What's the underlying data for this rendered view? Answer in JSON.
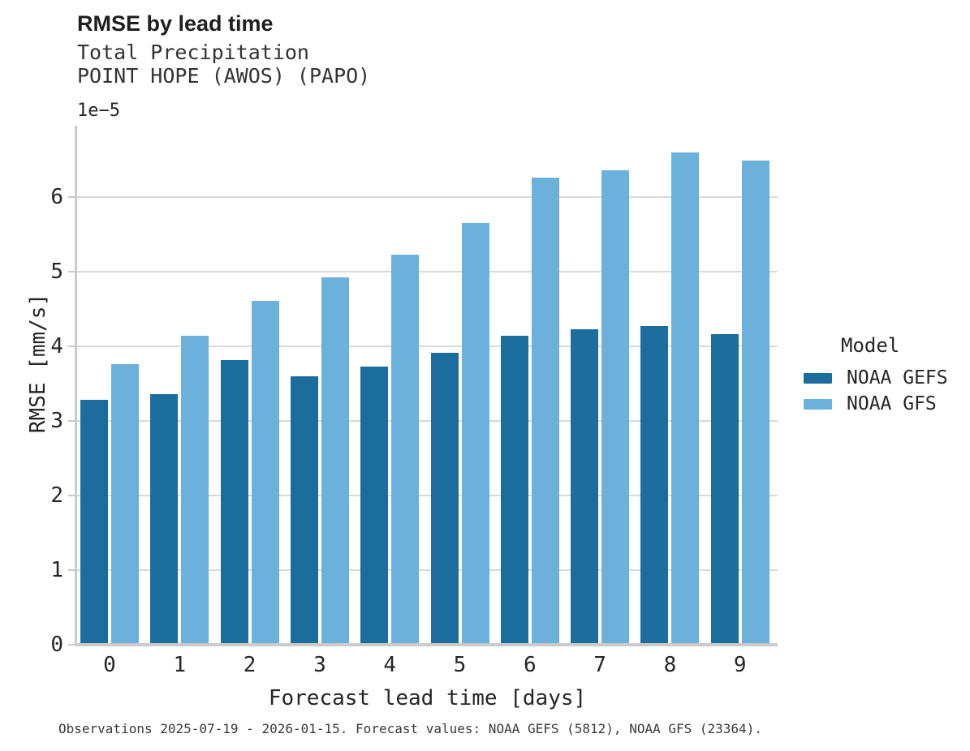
{
  "title": "RMSE by lead time",
  "subtitle": "Total Precipitation\nPOINT HOPE (AWOS) (PAPO)",
  "offset_label": "1e−5",
  "caption": "Observations 2025-07-19 - 2026-01-15. Forecast values: NOAA GEFS (5812), NOAA GFS (23364).",
  "legend": {
    "title": "Model",
    "items": [
      {
        "label": "NOAA GEFS",
        "color": "#1a6d9d"
      },
      {
        "label": "NOAA GFS",
        "color": "#6bb1db"
      }
    ]
  },
  "colors": {
    "gefs_bar": "#1a6d9d",
    "gfs_bar": "#6bb1db",
    "gridline": "#d9d9d9",
    "spine": "#cbcbcb"
  },
  "chart_data": {
    "type": "bar",
    "title": "RMSE by lead time",
    "subtitle": [
      "Total Precipitation",
      "POINT HOPE (AWOS) (PAPO)"
    ],
    "categories": [
      "0",
      "1",
      "2",
      "3",
      "4",
      "5",
      "6",
      "7",
      "8",
      "9"
    ],
    "series": [
      {
        "name": "NOAA GEFS",
        "color": "#1a6d9d",
        "values": [
          3.28,
          3.36,
          3.82,
          3.6,
          3.73,
          3.92,
          4.14,
          4.23,
          4.27,
          4.16
        ]
      },
      {
        "name": "NOAA GFS",
        "color": "#6bb1db",
        "values": [
          3.76,
          4.14,
          4.61,
          4.93,
          5.23,
          5.66,
          6.26,
          6.36,
          6.6,
          6.49
        ]
      }
    ],
    "value_scale": "1e-5",
    "xlabel": "Forecast lead time [days]",
    "ylabel": "RMSE [mm/s]",
    "ylim": [
      0,
      6.96
    ],
    "yticks": [
      0,
      1,
      2,
      3,
      4,
      5,
      6
    ],
    "grid": true,
    "legend_title": "Model",
    "legend_position": "right"
  }
}
